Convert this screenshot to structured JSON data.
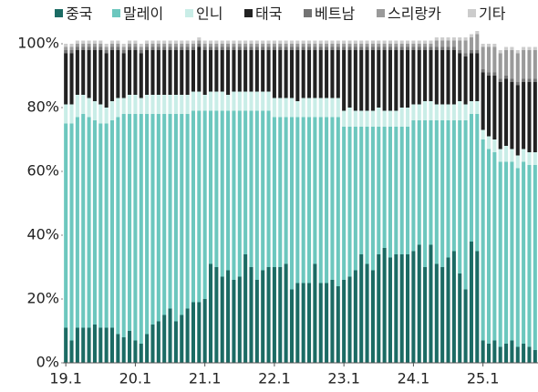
{
  "chart_data": {
    "type": "stacked_bar",
    "categories": [
      "19.1",
      null,
      null,
      null,
      null,
      null,
      null,
      null,
      null,
      null,
      null,
      null,
      "20.1",
      null,
      null,
      null,
      null,
      null,
      null,
      null,
      null,
      null,
      null,
      null,
      "21.1",
      null,
      null,
      null,
      null,
      null,
      null,
      null,
      null,
      null,
      null,
      null,
      "22.1",
      null,
      null,
      null,
      null,
      null,
      null,
      null,
      null,
      null,
      null,
      null,
      "23.1",
      null,
      null,
      null,
      null,
      null,
      null,
      null,
      null,
      null,
      null,
      null,
      "24.1",
      null,
      null,
      null,
      null,
      null,
      null,
      null,
      null,
      null,
      null,
      null,
      "25.1",
      null,
      null,
      null,
      null,
      null,
      null,
      null,
      null,
      null
    ],
    "series": [
      {
        "name": "중국",
        "color": "#1b6b64",
        "values": [
          11,
          7,
          11,
          11,
          11,
          12,
          11,
          11,
          11,
          9,
          8,
          10,
          7,
          6,
          9,
          12,
          13,
          15,
          17,
          13,
          15,
          17,
          19,
          19,
          20,
          31,
          30,
          27,
          29,
          26,
          27,
          34,
          30,
          26,
          29,
          30,
          30,
          30,
          31,
          23,
          25,
          25,
          25,
          31,
          25,
          25,
          26,
          24,
          26,
          27,
          29,
          34,
          31,
          29,
          34,
          36,
          33,
          34,
          34,
          34,
          35,
          37,
          30,
          37,
          31,
          30,
          33,
          35,
          28,
          23,
          38,
          35,
          7,
          6,
          7,
          5,
          6,
          7,
          5,
          6,
          5,
          4
        ]
      },
      {
        "name": "말레이",
        "color": "#6cc7be",
        "values": [
          64,
          68,
          66,
          67,
          66,
          64,
          64,
          64,
          65,
          68,
          70,
          68,
          71,
          72,
          69,
          66,
          65,
          63,
          61,
          65,
          63,
          61,
          60,
          60,
          59,
          48,
          49,
          52,
          50,
          53,
          52,
          45,
          49,
          53,
          50,
          49,
          47,
          47,
          46,
          54,
          52,
          52,
          52,
          46,
          52,
          52,
          51,
          53,
          48,
          47,
          45,
          40,
          43,
          45,
          40,
          38,
          41,
          40,
          40,
          40,
          41,
          39,
          46,
          39,
          45,
          46,
          43,
          41,
          48,
          53,
          40,
          43,
          63,
          61,
          59,
          58,
          57,
          56,
          56,
          57,
          57,
          58
        ]
      },
      {
        "name": "인니",
        "color": "#c9ede7",
        "values": [
          6,
          6,
          7,
          6,
          6,
          6,
          6,
          5,
          6,
          6,
          5,
          6,
          6,
          5,
          6,
          6,
          6,
          6,
          6,
          6,
          6,
          6,
          6,
          6,
          5,
          6,
          6,
          6,
          5,
          6,
          6,
          6,
          6,
          6,
          6,
          6,
          6,
          6,
          6,
          6,
          5,
          6,
          6,
          6,
          6,
          6,
          6,
          6,
          5,
          6,
          5,
          5,
          5,
          5,
          6,
          5,
          5,
          5,
          6,
          6,
          5,
          5,
          6,
          6,
          5,
          5,
          5,
          5,
          6,
          5,
          4,
          4,
          3,
          4,
          4,
          4,
          5,
          4,
          4,
          4,
          4,
          4
        ]
      },
      {
        "name": "태국",
        "color": "#222222",
        "values": [
          16,
          16,
          14,
          14,
          15,
          16,
          17,
          17,
          16,
          15,
          14,
          14,
          14,
          14,
          14,
          14,
          14,
          14,
          14,
          14,
          14,
          14,
          13,
          14,
          14,
          13,
          13,
          13,
          14,
          13,
          13,
          13,
          13,
          13,
          13,
          13,
          15,
          15,
          15,
          15,
          16,
          15,
          15,
          15,
          15,
          15,
          15,
          15,
          19,
          18,
          19,
          19,
          19,
          19,
          18,
          19,
          19,
          19,
          18,
          18,
          17,
          17,
          16,
          16,
          17,
          17,
          17,
          17,
          15,
          15,
          15,
          15,
          18,
          19,
          20,
          21,
          21,
          21,
          22,
          21,
          22,
          22
        ]
      },
      {
        "name": "베트남",
        "color": "#737373",
        "values": [
          1,
          1,
          1,
          1,
          1,
          1,
          1,
          1,
          1,
          1,
          1,
          1,
          1,
          1,
          1,
          1,
          1,
          1,
          1,
          1,
          1,
          1,
          1,
          1,
          1,
          1,
          1,
          1,
          1,
          1,
          1,
          1,
          1,
          1,
          1,
          1,
          1,
          1,
          1,
          1,
          1,
          1,
          1,
          1,
          1,
          1,
          1,
          1,
          1,
          1,
          1,
          1,
          1,
          1,
          1,
          1,
          1,
          1,
          1,
          1,
          1,
          1,
          1,
          1,
          1,
          1,
          1,
          1,
          1,
          1,
          1,
          1,
          1,
          1,
          1,
          1,
          1,
          1,
          1,
          1,
          1,
          1
        ]
      },
      {
        "name": "스리랑카",
        "color": "#9a9a9a",
        "values": [
          1,
          1,
          1,
          1,
          1,
          1,
          1,
          1,
          1,
          1,
          1,
          1,
          1,
          1,
          1,
          1,
          1,
          1,
          1,
          1,
          1,
          1,
          1,
          1,
          1,
          1,
          1,
          1,
          1,
          1,
          1,
          1,
          1,
          1,
          1,
          1,
          1,
          1,
          1,
          1,
          1,
          1,
          1,
          1,
          1,
          1,
          1,
          1,
          1,
          1,
          1,
          1,
          1,
          1,
          1,
          1,
          1,
          1,
          1,
          1,
          1,
          1,
          1,
          1,
          2,
          2,
          2,
          2,
          3,
          4,
          4,
          5,
          7,
          8,
          8,
          8,
          8,
          9,
          9,
          9,
          9,
          9
        ]
      },
      {
        "name": "기타",
        "color": "#cccccc",
        "values": [
          1,
          1,
          1,
          1,
          1,
          1,
          1,
          1,
          1,
          1,
          1,
          1,
          1,
          1,
          1,
          1,
          1,
          1,
          1,
          1,
          1,
          1,
          1,
          1,
          1,
          1,
          1,
          1,
          1,
          1,
          1,
          1,
          1,
          1,
          1,
          1,
          1,
          1,
          1,
          1,
          1,
          1,
          1,
          1,
          1,
          1,
          1,
          1,
          1,
          1,
          1,
          1,
          1,
          1,
          1,
          1,
          1,
          1,
          1,
          1,
          1,
          1,
          1,
          1,
          1,
          1,
          1,
          1,
          1,
          1,
          1,
          1,
          1,
          1,
          1,
          1,
          1,
          1,
          1,
          1,
          1,
          1
        ]
      }
    ],
    "ylim": [
      0,
      100
    ],
    "yticks": [
      {
        "value": 0,
        "label": "0%"
      },
      {
        "value": 20,
        "label": "20%"
      },
      {
        "value": 40,
        "label": "40%"
      },
      {
        "value": 60,
        "label": "60%"
      },
      {
        "value": 80,
        "label": "80%"
      },
      {
        "value": 100,
        "label": "100%"
      }
    ],
    "legend": "top"
  }
}
